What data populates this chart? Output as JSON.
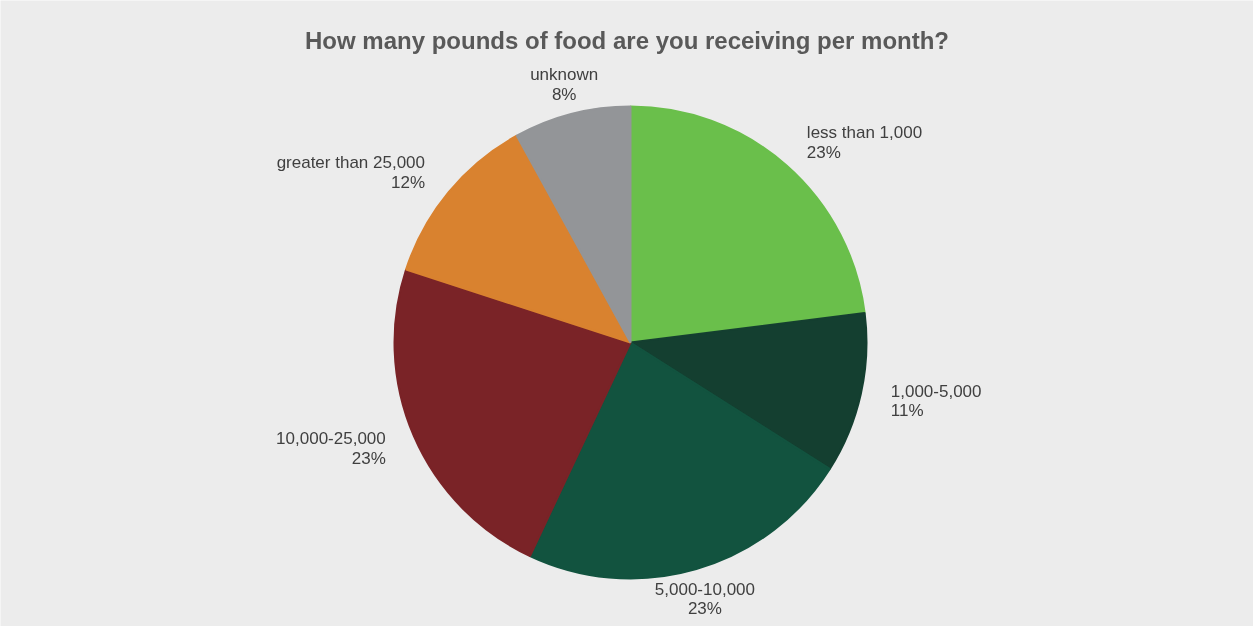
{
  "chart_data": {
    "type": "pie",
    "title": "How many pounds of food are you receiving per month?",
    "categories": [
      "less than 1,000",
      "1,000-5,000",
      "5,000-10,000",
      "10,000-25,000",
      "greater than 25,000",
      "unknown"
    ],
    "values": [
      23,
      11,
      23,
      23,
      12,
      8
    ],
    "colors": [
      "#6abf4b",
      "#143f30",
      "#12533f",
      "#7a2327",
      "#d9822f",
      "#939598"
    ],
    "value_labels": [
      "23%",
      "11%",
      "23%",
      "23%",
      "12%",
      "8%"
    ]
  }
}
